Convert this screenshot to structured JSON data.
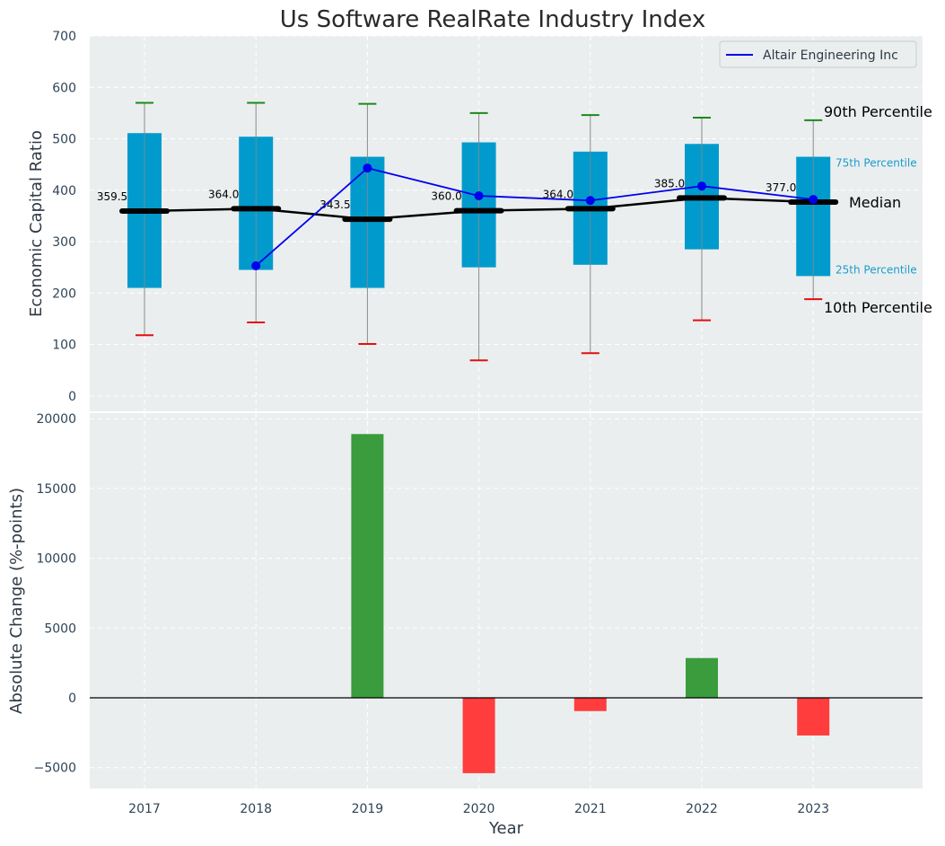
{
  "colors": {
    "box": "#009bcc",
    "median": "#000000",
    "company": "#0000ee",
    "p90": "#1a8a1a",
    "p10": "#e01010",
    "pos_bar": "#3a9c3c",
    "neg_bar": "#ff3d3d",
    "panel_bg": "#ebeeef",
    "whisker": "#8a8a8a",
    "annot_quartile": "#1a9ccc"
  },
  "chart_data": [
    {
      "type": "box",
      "title": "Us Software RealRate Industry Index",
      "ylabel": "Economic Capital Ratio",
      "xlabel": "",
      "ylim": [
        -30,
        700
      ],
      "yticks": [
        0,
        100,
        200,
        300,
        400,
        500,
        600,
        700
      ],
      "categories": [
        "2017",
        "2018",
        "2019",
        "2020",
        "2021",
        "2022",
        "2023"
      ],
      "p10": [
        118,
        143,
        101,
        69,
        83,
        147,
        188
      ],
      "p25": [
        210,
        245,
        210,
        250,
        255,
        285,
        233
      ],
      "median": [
        359.5,
        364.0,
        343.5,
        360.0,
        364.0,
        385.0,
        377.0
      ],
      "median_labels": [
        "359.5",
        "364.0",
        "343.5",
        "360.0",
        "364.0",
        "385.0",
        "377.0"
      ],
      "p75": [
        511,
        504,
        465,
        493,
        475,
        490,
        465
      ],
      "p90": [
        570,
        570,
        568,
        550,
        546,
        541,
        536
      ],
      "company": {
        "name": "Altair Engineering Inc",
        "values": [
          null,
          253,
          443,
          389,
          380,
          408,
          382
        ]
      },
      "legend": {
        "position": "top-right",
        "entries": [
          "Altair Engineering Inc"
        ]
      },
      "annotations": {
        "p90": "90th Percentile",
        "p75": "75th Percentile",
        "median": "Median",
        "p25": "25th Percentile",
        "p10": "10th Percentile"
      },
      "grid": true
    },
    {
      "type": "bar",
      "ylabel": "Absolute Change (%-points)",
      "xlabel": "Year",
      "ylim": [
        -6500,
        20400
      ],
      "yticks": [
        -5000,
        0,
        5000,
        10000,
        15000,
        20000
      ],
      "ytick_labels": [
        "−5000",
        "0",
        "5000",
        "10000",
        "15000",
        "20000"
      ],
      "categories": [
        "2017",
        "2018",
        "2019",
        "2020",
        "2021",
        "2022",
        "2023"
      ],
      "values": [
        null,
        null,
        18900,
        -5400,
        -950,
        2850,
        -2700
      ],
      "grid": true
    }
  ]
}
